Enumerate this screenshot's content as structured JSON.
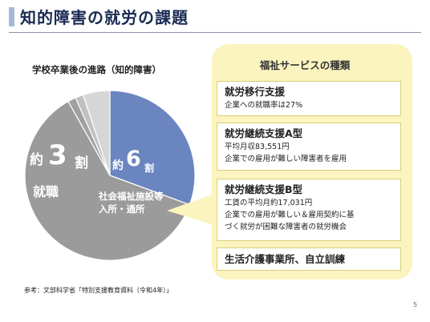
{
  "slide": {
    "title": "知的障害の就労の課題",
    "page_number": "5",
    "source_note": "参考：文部科学省「特別支援教育資料（令和4年）」"
  },
  "chart_data": {
    "type": "pie",
    "title": "学校卒業後の進路（知的障害）",
    "slices": [
      {
        "label": "就職",
        "value": 3,
        "color": "#6a85c0"
      },
      {
        "label": "社会福祉施設等入所・通所",
        "value": 6,
        "color": "#9b9b9b"
      },
      {
        "label": "",
        "value": 0.15,
        "color": "#a0a0a0"
      },
      {
        "label": "",
        "value": 0.15,
        "color": "#c0c0c0"
      },
      {
        "label": "",
        "value": 0.5,
        "color": "#d6d6d6"
      }
    ],
    "labels": {
      "employment": {
        "prefix": "約",
        "number": "3",
        "suffix": "割",
        "caption": "就職"
      },
      "welfare": {
        "prefix": "約",
        "number": "6",
        "suffix": "割",
        "caption_line1": "社会福祉施設等",
        "caption_line2": "入所・通所"
      }
    }
  },
  "panel": {
    "title": "福祉サービスの種類",
    "background": "#fbf4bf",
    "cards": [
      {
        "heading": "就労移行支援",
        "lines": [
          "企業への就職率は27%"
        ]
      },
      {
        "heading": "就労継続支援A型",
        "lines": [
          "平均月収83,551円",
          "企業での雇用が難しい障害者を雇用"
        ]
      },
      {
        "heading": "就労継続支援B型",
        "lines": [
          "工賃の平均月約17,031円",
          "企業での雇用が難しい＆雇用契約に基",
          "づく就労が困難な障害者の就労機会"
        ]
      },
      {
        "heading": "生活介護事業所、自立訓練",
        "lines": []
      }
    ]
  }
}
